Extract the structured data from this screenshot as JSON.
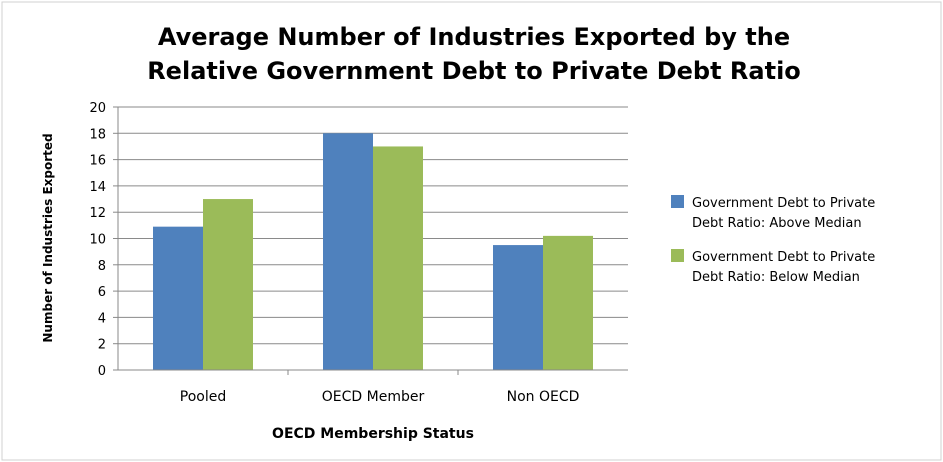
{
  "chart_data": {
    "type": "bar",
    "title_lines": [
      "Average Number of Industries Exported by the",
      "Relative Government Debt to Private Debt Ratio"
    ],
    "xlabel": "OECD Membership Status",
    "ylabel": "Number of Industries Exported",
    "categories": [
      "Pooled",
      "OECD Member",
      "Non OECD"
    ],
    "ylim": [
      0,
      20
    ],
    "yticks": [
      0,
      2,
      4,
      6,
      8,
      10,
      12,
      14,
      16,
      18,
      20
    ],
    "grid": true,
    "legend_position": "right",
    "series": [
      {
        "name_lines": [
          "Government Debt to Private",
          "Debt Ratio: Above Median"
        ],
        "color": "#4F81BD",
        "values": [
          10.9,
          18.0,
          9.5
        ]
      },
      {
        "name_lines": [
          "Government Debt to Private",
          "Debt Ratio: Below Median"
        ],
        "color": "#9BBB59",
        "values": [
          13.0,
          17.0,
          10.2
        ]
      }
    ]
  }
}
